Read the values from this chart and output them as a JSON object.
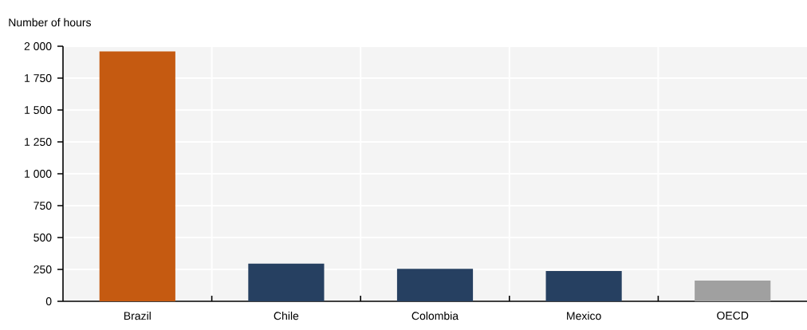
{
  "chart_data": {
    "type": "bar",
    "ylabel": "Number of hours",
    "categories": [
      "Brazil",
      "Chile",
      "Colombia",
      "Mexico",
      "OECD"
    ],
    "values": [
      1960,
      295,
      255,
      237,
      162
    ],
    "colors": [
      "#c55a11",
      "#264061",
      "#264061",
      "#264061",
      "#a0a0a0"
    ],
    "ylim": [
      0,
      2000
    ],
    "yticks": [
      0,
      250,
      500,
      750,
      {
        "value": 1000,
        "label": "1 000"
      },
      {
        "value": 1250,
        "label": "1 250"
      },
      {
        "value": 1500,
        "label": "1 500"
      },
      {
        "value": 1750,
        "label": "1 750"
      },
      {
        "value": 2000,
        "label": "2 000"
      }
    ],
    "grid": true
  }
}
